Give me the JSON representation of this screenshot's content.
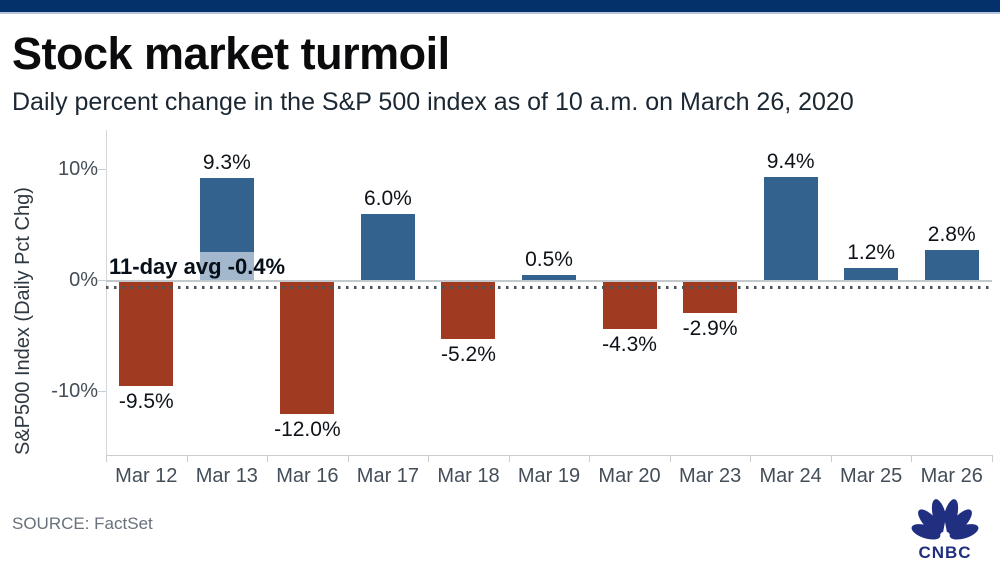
{
  "header": {
    "title": "Stock market turmoil",
    "subtitle": "Daily percent change in the S&P 500 index as of 10 a.m. on March 26, 2020"
  },
  "chart_data": {
    "type": "bar",
    "title": "Stock market turmoil",
    "subtitle": "Daily percent change in the S&P 500 index as of 10 a.m. on March 26, 2020",
    "categories": [
      "Mar 12",
      "Mar 13",
      "Mar 16",
      "Mar 17",
      "Mar 18",
      "Mar 19",
      "Mar 20",
      "Mar 23",
      "Mar 24",
      "Mar 25",
      "Mar 26"
    ],
    "values": [
      -9.5,
      9.3,
      -12.0,
      6.0,
      -5.2,
      0.5,
      -4.3,
      -2.9,
      9.4,
      1.2,
      2.8
    ],
    "labels": [
      "-9.5%",
      "9.3%",
      "-12.0%",
      "6.0%",
      "-5.2%",
      "0.5%",
      "-4.3%",
      "-2.9%",
      "9.4%",
      "1.2%",
      "2.8%"
    ],
    "xlabel": "",
    "ylabel": "S&P500 Index (Daily Pct Chg)",
    "ylim": [
      -15.7,
      13.6
    ],
    "yticks": [
      {
        "value": 10,
        "label": "10%"
      },
      {
        "value": 0,
        "label": "0%"
      },
      {
        "value": -10,
        "label": "-10%"
      }
    ],
    "grid": false,
    "legend": "none",
    "annotation": {
      "text": "11-day avg -0.4%",
      "value": -0.4,
      "style": "dotted-line"
    },
    "colors": {
      "positive": "#33628e",
      "negative": "#a03b21"
    }
  },
  "footer": {
    "source": "SOURCE: FactSet",
    "logo_text": "CNBC"
  },
  "colors": {
    "topbar": "#04316a",
    "topbar_underline": "#b7c6dc",
    "logo_navy": "#212f80",
    "axis_gray": "#c9ced3"
  }
}
